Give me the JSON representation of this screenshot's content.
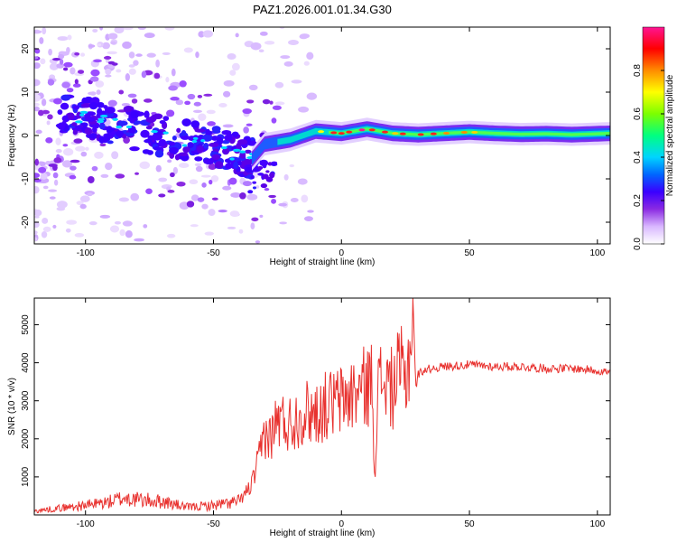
{
  "title": "PAZ1.2026.001.01.34.G30",
  "chart_data": [
    {
      "type": "heatmap",
      "title": "PAZ1.2026.001.01.34.G30",
      "xlabel": "Height of straight line (km)",
      "ylabel": "Frequency (Hz)",
      "xlim": [
        -120,
        105
      ],
      "ylim": [
        -25,
        25
      ],
      "xticks": [
        -100,
        -50,
        0,
        50,
        100
      ],
      "yticks": [
        -20,
        -10,
        0,
        10,
        20
      ],
      "colorbar": {
        "label": "Normalized spectral amplitude",
        "range": [
          0,
          1
        ],
        "ticks": [
          "0.0",
          "0.2",
          "0.4",
          "0.6",
          "0.8"
        ],
        "tick_values": [
          0.0,
          0.2,
          0.4,
          0.6,
          0.8
        ],
        "colors": [
          "#ffffff",
          "#8b2be2",
          "#3a00ff",
          "#0066ff",
          "#00d4ff",
          "#00ff80",
          "#7cff00",
          "#ffff00",
          "#ff8c00",
          "#ff0000",
          "#ff1493"
        ]
      },
      "ridge": {
        "description_values": "frequency centroid (Hz) vs height (km)",
        "x": [
          -105,
          -95,
          -85,
          -75,
          -65,
          -55,
          -45,
          -35,
          -30,
          -20,
          -10,
          0,
          10,
          20,
          30,
          40,
          50,
          60,
          70,
          80,
          90,
          100,
          105
        ],
        "y": [
          4.5,
          3.5,
          2.0,
          0.5,
          -0.5,
          -1.5,
          -3.5,
          -5.5,
          -2.0,
          -1.0,
          1.0,
          0.5,
          1.5,
          0.5,
          0.2,
          0.5,
          0.8,
          0.5,
          0.3,
          0.4,
          0.2,
          0.4,
          0.5
        ]
      }
    },
    {
      "type": "line",
      "xlabel": "Height of straight line (km)",
      "ylabel": "SNR (10 * v/v)",
      "xlim": [
        -120,
        105
      ],
      "ylim": [
        0,
        5700
      ],
      "xticks": [
        -100,
        -50,
        0,
        50,
        100
      ],
      "yticks": [
        1000,
        2000,
        3000,
        4000,
        5000
      ],
      "series": [
        {
          "name": "SNR",
          "color": "#e8312e",
          "x": [
            -120,
            -110,
            -100,
            -90,
            -85,
            -80,
            -70,
            -60,
            -50,
            -45,
            -40,
            -35,
            -32,
            -30,
            -28,
            -25,
            -20,
            -15,
            -10,
            -5,
            0,
            5,
            10,
            12,
            13,
            14,
            16,
            20,
            23,
            25,
            27,
            28,
            29,
            30,
            32,
            35,
            40,
            50,
            60,
            70,
            80,
            90,
            100,
            105
          ],
          "y": [
            100,
            180,
            250,
            350,
            450,
            400,
            350,
            200,
            250,
            300,
            350,
            800,
            1500,
            2200,
            2000,
            2500,
            2400,
            2700,
            2700,
            2900,
            3000,
            3200,
            3400,
            3500,
            1000,
            3200,
            3600,
            3300,
            3800,
            3500,
            4500,
            5700,
            3300,
            3700,
            3800,
            3850,
            3900,
            3950,
            3900,
            3900,
            3850,
            3850,
            3800,
            3750
          ]
        }
      ]
    }
  ]
}
